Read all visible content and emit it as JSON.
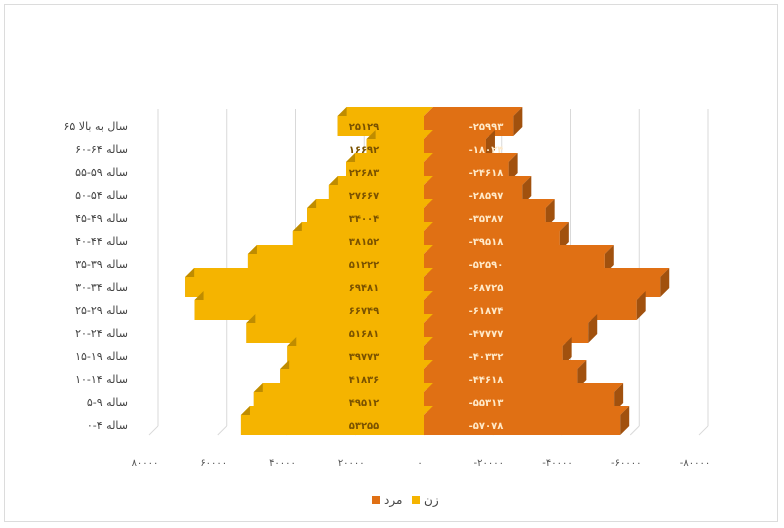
{
  "chart_data": {
    "type": "bar",
    "orientation": "horizontal",
    "layout": "population-pyramid",
    "categories": [
      "۰-۴ ساله",
      "۵-۹ ساله",
      "۱۰-۱۴ ساله",
      "۱۵-۱۹ ساله",
      "۲۰-۲۴ ساله",
      "۲۵-۲۹ ساله",
      "۳۰-۳۴ ساله",
      "۳۵-۳۹ ساله",
      "۴۰-۴۴ ساله",
      "۴۵-۴۹ ساله",
      "۵۰-۵۴ ساله",
      "۵۵-۵۹ ساله",
      "۶۰-۶۴ ساله",
      "۶۵ سال به بالا"
    ],
    "series": [
      {
        "name": "زن",
        "color": "#F5B400",
        "side": "left",
        "values": [
          53255,
          49512,
          41836,
          39773,
          51681,
          66749,
          69481,
          51222,
          38152,
          34004,
          27667,
          22683,
          16692,
          25129
        ],
        "value_labels": [
          "۵۳۲۵۵",
          "۴۹۵۱۲",
          "۴۱۸۳۶",
          "۳۹۷۷۳",
          "۵۱۶۸۱",
          "۶۶۷۴۹",
          "۶۹۴۸۱",
          "۵۱۲۲۲",
          "۳۸۱۵۲",
          "۳۴۰۰۴",
          "۲۷۶۶۷",
          "۲۲۶۸۳",
          "۱۶۶۹۲",
          "۲۵۱۲۹"
        ]
      },
      {
        "name": "مرد",
        "color": "#E07014",
        "side": "right",
        "values": [
          57078,
          55313,
          44618,
          40332,
          47777,
          61874,
          68725,
          52590,
          39518,
          35387,
          28597,
          24618,
          18024,
          25993
        ],
        "value_labels": [
          "-۵۷۰۷۸",
          "-۵۵۳۱۳",
          "-۴۴۶۱۸",
          "-۴۰۳۳۲",
          "-۴۷۷۷۷",
          "-۶۱۸۷۴",
          "-۶۸۷۲۵",
          "-۵۲۵۹۰",
          "-۳۹۵۱۸",
          "-۳۵۳۸۷",
          "-۲۸۵۹۷",
          "-۲۴۶۱۸",
          "-۱۸۰۲۴",
          "-۲۵۹۹۳"
        ]
      }
    ],
    "xlim": [
      -80000,
      80000
    ],
    "x_ticks": [
      {
        "value": -80000,
        "label": "۸۰۰۰۰"
      },
      {
        "value": -60000,
        "label": "۶۰۰۰۰"
      },
      {
        "value": -40000,
        "label": "۴۰۰۰۰"
      },
      {
        "value": -20000,
        "label": "۲۰۰۰۰"
      },
      {
        "value": 0,
        "label": "۰"
      },
      {
        "value": 20000,
        "label": "-۲۰۰۰۰"
      },
      {
        "value": 40000,
        "label": "-۴۰۰۰۰"
      },
      {
        "value": 60000,
        "label": "-۶۰۰۰۰"
      },
      {
        "value": 80000,
        "label": "-۸۰۰۰۰"
      }
    ],
    "title": "",
    "xlabel": "",
    "ylabel": "",
    "grid": "vertical",
    "style": "3d",
    "legend_position": "bottom"
  }
}
